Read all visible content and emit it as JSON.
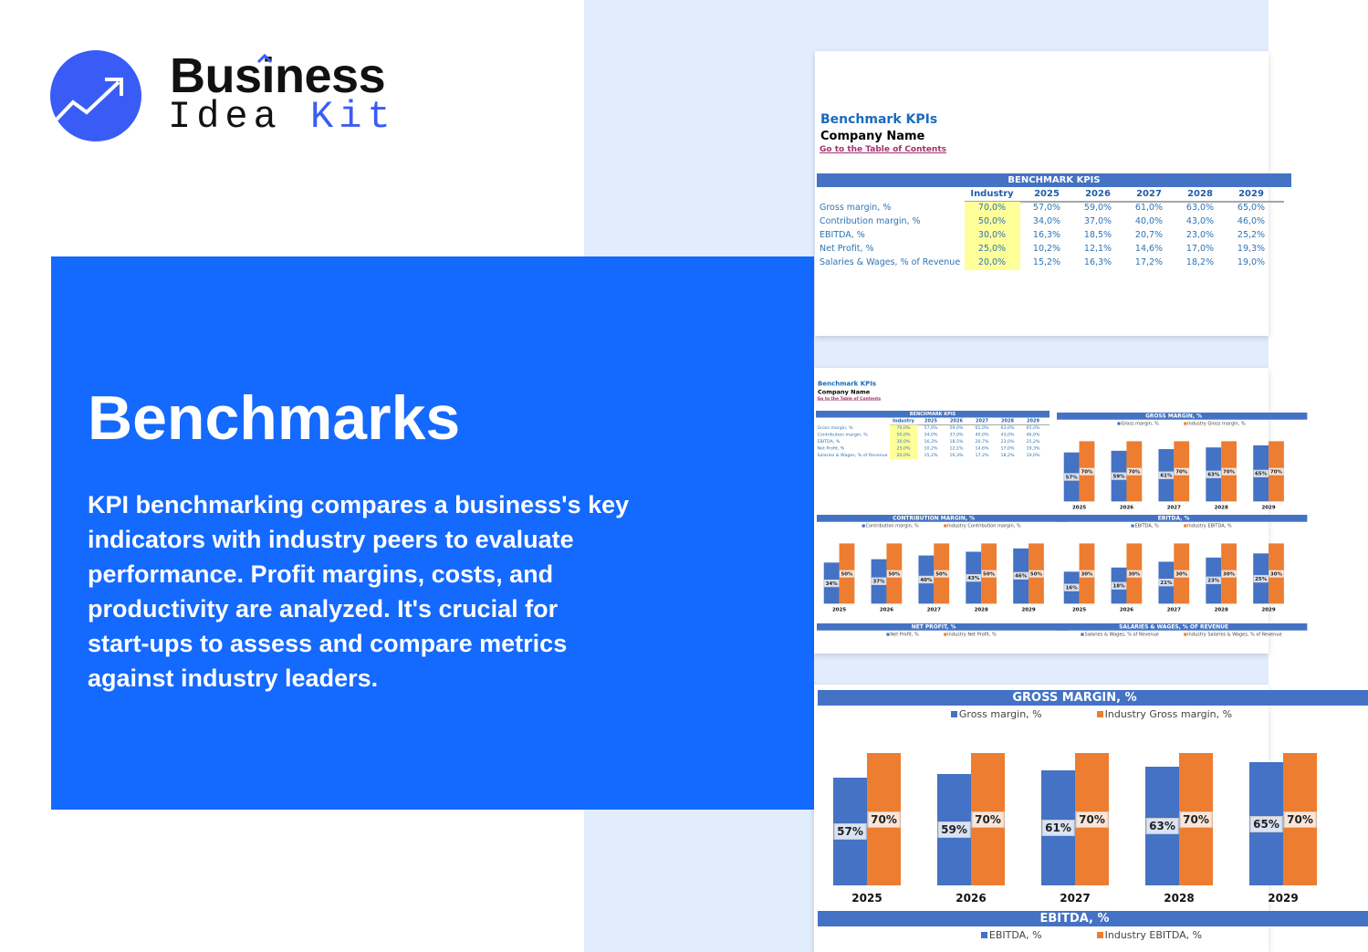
{
  "logo": {
    "word1": "Business",
    "word2": "Idea",
    "word3": "Kit",
    "brand_color": "#3a5cf6"
  },
  "hero": {
    "title": "Benchmarks",
    "description_lines": [
      "KPI benchmarking compares a business's key",
      "indicators with industry peers to evaluate",
      "performance. Profit margins, costs, and",
      "productivity are analyzed. It's crucial for",
      "start-ups to assess and compare metrics",
      "against industry leaders."
    ],
    "panel_color": "#1469fe"
  },
  "sheet": {
    "title": "Benchmark KPIs",
    "company": "Company Name",
    "toc_link": "Go to the Table of Contents",
    "table": {
      "header": "BENCHMARK KPIS",
      "columns": [
        "Industry",
        "2025",
        "2026",
        "2027",
        "2028",
        "2029"
      ],
      "rows": [
        {
          "label": "Gross margin, %",
          "values": [
            "70,0%",
            "57,0%",
            "59,0%",
            "61,0%",
            "63,0%",
            "65,0%"
          ]
        },
        {
          "label": "Contribution margin, %",
          "values": [
            "50,0%",
            "34,0%",
            "37,0%",
            "40,0%",
            "43,0%",
            "46,0%"
          ]
        },
        {
          "label": "EBITDA, %",
          "values": [
            "30,0%",
            "16,3%",
            "18,5%",
            "20,7%",
            "23,0%",
            "25,2%"
          ]
        },
        {
          "label": "Net Profit, %",
          "values": [
            "25,0%",
            "10,2%",
            "12,1%",
            "14,6%",
            "17,0%",
            "19,3%"
          ]
        },
        {
          "label": "Salaries & Wages, % of Revenue",
          "values": [
            "20,0%",
            "15,2%",
            "16,3%",
            "17,2%",
            "18,2%",
            "19,0%"
          ]
        }
      ]
    }
  },
  "colors": {
    "series_company": "#4472c4",
    "series_industry": "#ed7d31",
    "header_bar": "#4472c4",
    "industry_highlight": "#ffff99"
  },
  "chart_data": [
    {
      "type": "bar",
      "title": "GROSS MARGIN, %",
      "categories": [
        "2025",
        "2026",
        "2027",
        "2028",
        "2029"
      ],
      "series": [
        {
          "name": "Gross margin, %",
          "values": [
            57,
            59,
            61,
            63,
            65
          ]
        },
        {
          "name": "Industry Gross margin, %",
          "values": [
            70,
            70,
            70,
            70,
            70
          ]
        }
      ]
    },
    {
      "type": "bar",
      "title": "CONTRIBUTION MARGIN, %",
      "categories": [
        "2025",
        "2026",
        "2027",
        "2028",
        "2029"
      ],
      "series": [
        {
          "name": "Contribution margin, %",
          "values": [
            34,
            37,
            40,
            43,
            46
          ]
        },
        {
          "name": "Industry Contribution margin, %",
          "values": [
            50,
            50,
            50,
            50,
            50
          ]
        }
      ]
    },
    {
      "type": "bar",
      "title": "EBITDA, %",
      "categories": [
        "2025",
        "2026",
        "2027",
        "2028",
        "2029"
      ],
      "series": [
        {
          "name": "EBITDA, %",
          "values": [
            16,
            18,
            21,
            23,
            25
          ]
        },
        {
          "name": "Industry EBITDA, %",
          "values": [
            30,
            30,
            30,
            30,
            30
          ]
        }
      ]
    },
    {
      "type": "bar",
      "title": "NET PROFIT, %",
      "series": [
        {
          "name": "Net Profit, %"
        },
        {
          "name": "Industry Net Profit, %"
        }
      ]
    },
    {
      "type": "bar",
      "title": "SALARIES & WAGES, % OF REVENUE",
      "series": [
        {
          "name": "Salaries & Wages, % of Revenue"
        },
        {
          "name": "Industry Salaries & Wages, % of Revenue"
        }
      ]
    }
  ]
}
